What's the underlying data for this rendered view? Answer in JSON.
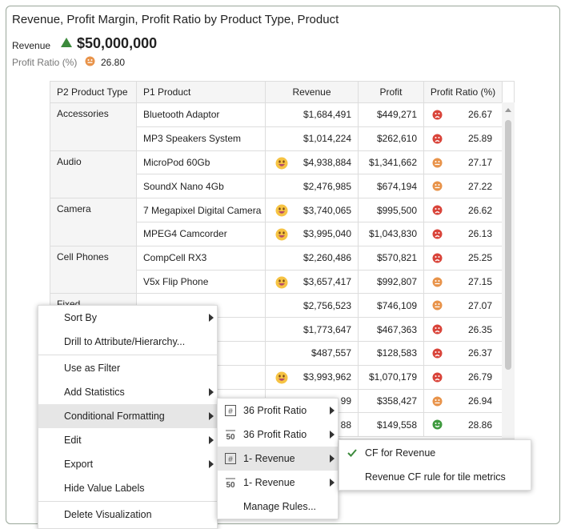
{
  "header": {
    "title": "Revenue, Profit Margin, Profit Ratio by Product Type, Product",
    "kpi_label": "Revenue",
    "kpi_value": "$50,000,000",
    "secondary_label": "Profit Ratio (%)",
    "secondary_value": "26.80"
  },
  "table": {
    "columns": [
      "P2 Product Type",
      "P1 Product",
      "Revenue",
      "Profit",
      "Profit Ratio (%)"
    ],
    "rows": [
      [
        "Accessories",
        "Bluetooth Adaptor",
        "$1,684,491",
        "$449,271",
        "26.67"
      ],
      [
        null,
        "MP3 Speakers System",
        "$1,014,224",
        "$262,610",
        "25.89"
      ],
      [
        "Audio",
        "MicroPod 60Gb",
        "$4,938,884",
        "$1,341,662",
        "27.17"
      ],
      [
        null,
        "SoundX Nano 4Gb",
        "$2,476,985",
        "$674,194",
        "27.22"
      ],
      [
        "Camera",
        "7 Megapixel Digital Camera",
        "$3,740,065",
        "$995,500",
        "26.62"
      ],
      [
        null,
        "MPEG4 Camcorder",
        "$3,995,040",
        "$1,043,830",
        "26.13"
      ],
      [
        "Cell Phones",
        "CompCell RX3",
        "$2,260,486",
        "$570,821",
        "25.25"
      ],
      [
        null,
        "V5x Flip Phone",
        "$3,657,417",
        "$992,807",
        "27.15"
      ],
      [
        "Fixed",
        null,
        "$2,756,523",
        "$746,109",
        "27.07"
      ],
      [
        null,
        null,
        "$1,773,647",
        "$467,363",
        "26.35"
      ],
      [
        null,
        null,
        "$487,557",
        "$128,583",
        "26.37"
      ],
      [
        null,
        null,
        "$3,993,962",
        "$1,070,179",
        "26.79"
      ],
      [
        null,
        null,
        "99",
        "$358,427",
        "26.94"
      ],
      [
        null,
        null,
        "88",
        "$149,558",
        "28.86"
      ]
    ]
  },
  "context_menu": [
    "Sort By",
    "Drill to Attribute/Hierarchy...",
    "Use as Filter",
    "Add Statistics",
    "Conditional Formatting",
    "Edit",
    "Export",
    "Hide Value Labels",
    "Delete Visualization"
  ],
  "cf_menu": [
    "36 Profit Ratio",
    "36 Profit Ratio",
    "1- Revenue",
    "1- Revenue",
    "Manage Rules..."
  ],
  "rule_menu": [
    "CF for Revenue",
    "Revenue CF rule for tile metrics"
  ]
}
